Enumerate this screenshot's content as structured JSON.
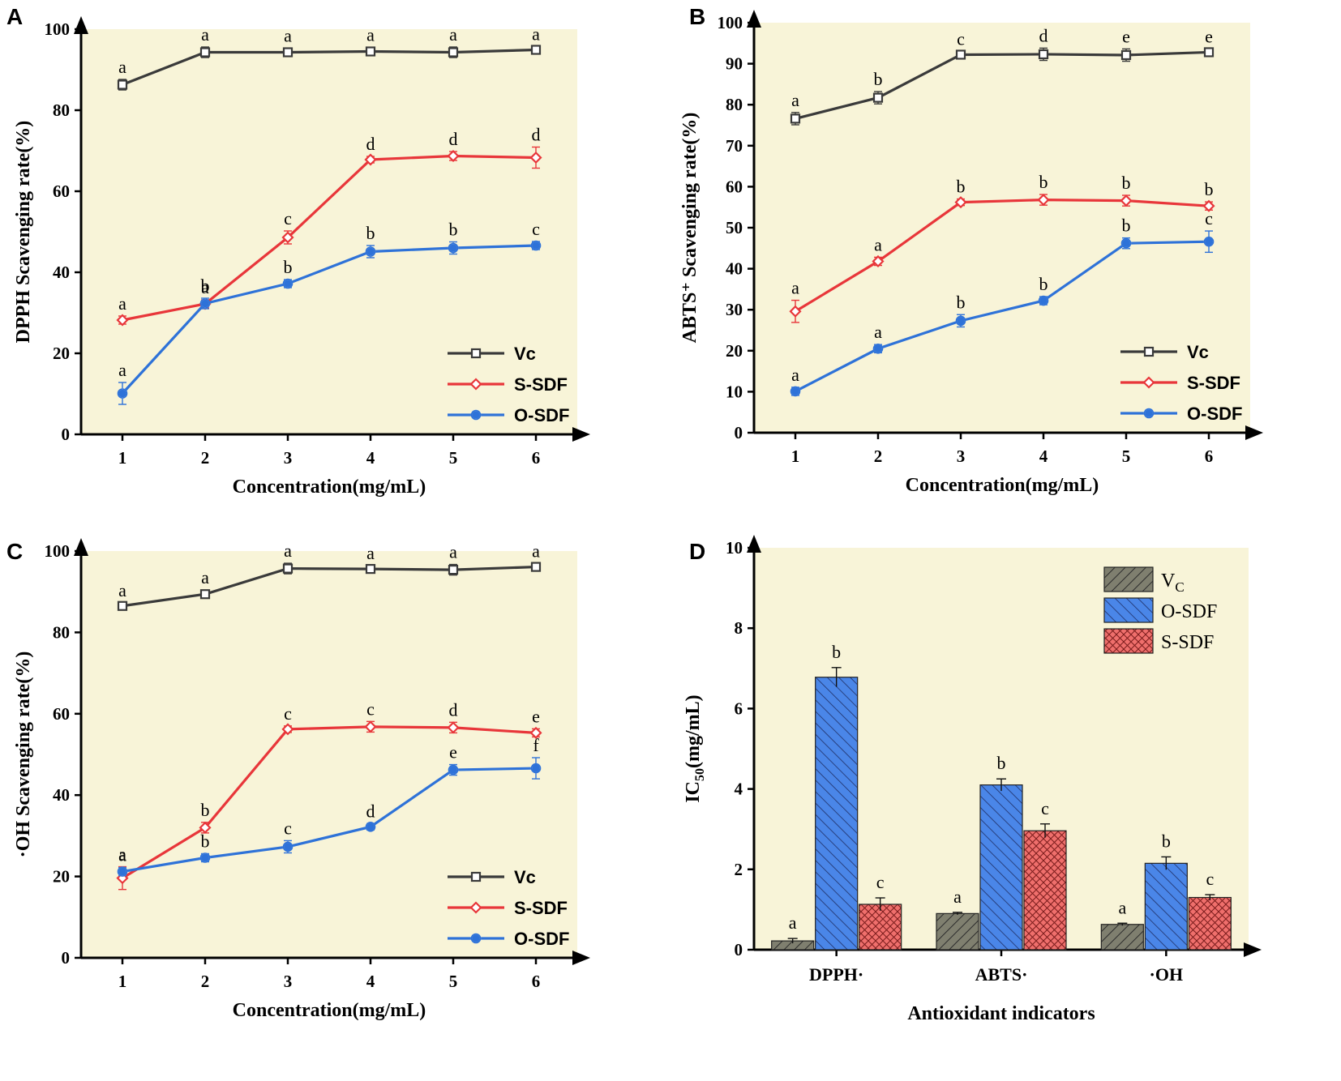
{
  "colors": {
    "panel_bg": "#f8f4d8",
    "axis": "#000000",
    "vc": "#3a3a3a",
    "s_sdf": "#e8363a",
    "o_sdf": "#2e72d8",
    "bar_vc": "#7f7f6f",
    "bar_o_sdf": "#4a86e8",
    "bar_s_sdf": "#ef6f6c"
  },
  "chart_data": [
    {
      "panel": "A",
      "type": "line",
      "xlabel": "Concentration(mg/mL)",
      "ylabel": "DPPH Scavenging rate(%)",
      "x": [
        1,
        2,
        3,
        4,
        5,
        6
      ],
      "xlim": [
        0.5,
        6.5
      ],
      "ylim": [
        0,
        100
      ],
      "yticks": [
        0,
        20,
        40,
        60,
        80,
        100
      ],
      "legend_position": "bottom-right",
      "series": [
        {
          "name": "Vc",
          "color_key": "vc",
          "marker": "square",
          "values": [
            86.3,
            94.3,
            94.3,
            94.5,
            94.3,
            94.9
          ],
          "errors": [
            1.3,
            1.3,
            1.0,
            1.0,
            1.3,
            0.8
          ],
          "letters": [
            "a",
            "a",
            "a",
            "a",
            "a",
            "a"
          ]
        },
        {
          "name": "S-SDF",
          "color_key": "s_sdf",
          "marker": "diamond",
          "values": [
            28.2,
            32.2,
            48.6,
            67.8,
            68.7,
            68.3
          ],
          "errors": [
            1.0,
            1.0,
            1.6,
            0.8,
            1.1,
            2.6
          ],
          "letters": [
            "a",
            "a",
            "c",
            "d",
            "d",
            "d"
          ]
        },
        {
          "name": "O-SDF",
          "color_key": "o_sdf",
          "marker": "circle",
          "values": [
            10.1,
            32.3,
            37.2,
            45.1,
            46.0,
            46.6
          ],
          "errors": [
            2.7,
            1.3,
            1.0,
            1.5,
            1.5,
            1.0
          ],
          "letters": [
            "a",
            "b",
            "b",
            "b",
            "b",
            "c"
          ]
        }
      ]
    },
    {
      "panel": "B",
      "type": "line",
      "xlabel": "Concentration(mg/mL)",
      "ylabel": "ABTS⁺ Scavenging rate(%)",
      "x": [
        1,
        2,
        3,
        4,
        5,
        6
      ],
      "xlim": [
        0.5,
        6.5
      ],
      "ylim": [
        0,
        100
      ],
      "yticks": [
        0,
        10,
        20,
        30,
        40,
        50,
        60,
        70,
        80,
        90,
        100
      ],
      "legend_position": "bottom-right",
      "series": [
        {
          "name": "Vc",
          "color_key": "vc",
          "marker": "square",
          "values": [
            76.6,
            81.7,
            92.2,
            92.3,
            92.1,
            92.8
          ],
          "errors": [
            1.5,
            1.5,
            0.8,
            1.5,
            1.5,
            0.8
          ],
          "letters": [
            "a",
            "b",
            "c",
            "d",
            "e",
            "e"
          ]
        },
        {
          "name": "S-SDF",
          "color_key": "s_sdf",
          "marker": "diamond",
          "values": [
            29.6,
            41.8,
            56.2,
            56.8,
            56.6,
            55.3
          ],
          "errors": [
            2.7,
            1.0,
            0.8,
            1.3,
            1.3,
            1.0
          ],
          "letters": [
            "a",
            "a",
            "b",
            "b",
            "b",
            "b"
          ]
        },
        {
          "name": "O-SDF",
          "color_key": "o_sdf",
          "marker": "circle",
          "values": [
            10.1,
            20.5,
            27.3,
            32.2,
            46.2,
            46.6
          ],
          "errors": [
            1.0,
            1.0,
            1.5,
            1.0,
            1.3,
            2.6
          ],
          "letters": [
            "a",
            "a",
            "b",
            "b",
            "b",
            "c"
          ]
        }
      ]
    },
    {
      "panel": "C",
      "type": "line",
      "xlabel": "Concentration(mg/mL)",
      "ylabel": "·OH Scavenging rate(%)",
      "x": [
        1,
        2,
        3,
        4,
        5,
        6
      ],
      "xlim": [
        0.5,
        6.5
      ],
      "ylim": [
        0,
        100
      ],
      "yticks": [
        0,
        20,
        40,
        60,
        80,
        100
      ],
      "legend_position": "bottom-right",
      "series": [
        {
          "name": "Vc",
          "color_key": "vc",
          "marker": "square",
          "values": [
            86.5,
            89.4,
            95.7,
            95.6,
            95.4,
            96.1
          ],
          "errors": [
            0.8,
            1.0,
            1.3,
            0.8,
            1.3,
            0.8
          ],
          "letters": [
            "a",
            "a",
            "a",
            "a",
            "a",
            "a"
          ]
        },
        {
          "name": "S-SDF",
          "color_key": "s_sdf",
          "marker": "diamond",
          "values": [
            19.6,
            32.0,
            56.2,
            56.8,
            56.6,
            55.3
          ],
          "errors": [
            2.8,
            1.3,
            0.8,
            1.3,
            1.3,
            1.0
          ],
          "letters": [
            "a",
            "b",
            "c",
            "c",
            "d",
            "e"
          ]
        },
        {
          "name": "O-SDF",
          "color_key": "o_sdf",
          "marker": "circle",
          "values": [
            21.2,
            24.6,
            27.3,
            32.2,
            46.2,
            46.6
          ],
          "errors": [
            1.0,
            1.0,
            1.5,
            0.8,
            1.3,
            2.6
          ],
          "letters": [
            "a",
            "b",
            "c",
            "d",
            "e",
            "f"
          ]
        }
      ]
    },
    {
      "panel": "D",
      "type": "bar",
      "xlabel": "Antioxidant indicators",
      "ylabel_main": "IC",
      "ylabel_sub": "50",
      "ylabel_tail": "(mg/mL)",
      "categories": [
        "DPPH·",
        "ABTS·",
        "·OH"
      ],
      "ylim": [
        0,
        10
      ],
      "yticks": [
        0,
        2,
        4,
        6,
        8,
        10
      ],
      "legend_position": "top-right",
      "series": [
        {
          "name": "V",
          "name_sub": "C",
          "color_key": "bar_vc",
          "pattern": "diag-forward",
          "values": [
            0.22,
            0.9,
            0.63
          ],
          "errors": [
            0.06,
            0.03,
            0.03
          ],
          "letters": [
            "a",
            "a",
            "a"
          ]
        },
        {
          "name": "O-SDF",
          "color_key": "bar_o_sdf",
          "pattern": "diag-back",
          "values": [
            6.78,
            4.1,
            2.15
          ],
          "errors": [
            0.24,
            0.15,
            0.16
          ],
          "letters": [
            "b",
            "b",
            "b"
          ]
        },
        {
          "name": "S-SDF",
          "color_key": "bar_s_sdf",
          "pattern": "crosshatch",
          "values": [
            1.13,
            2.96,
            1.3
          ],
          "errors": [
            0.16,
            0.17,
            0.07
          ],
          "letters": [
            "c",
            "c",
            "c"
          ]
        }
      ]
    }
  ]
}
